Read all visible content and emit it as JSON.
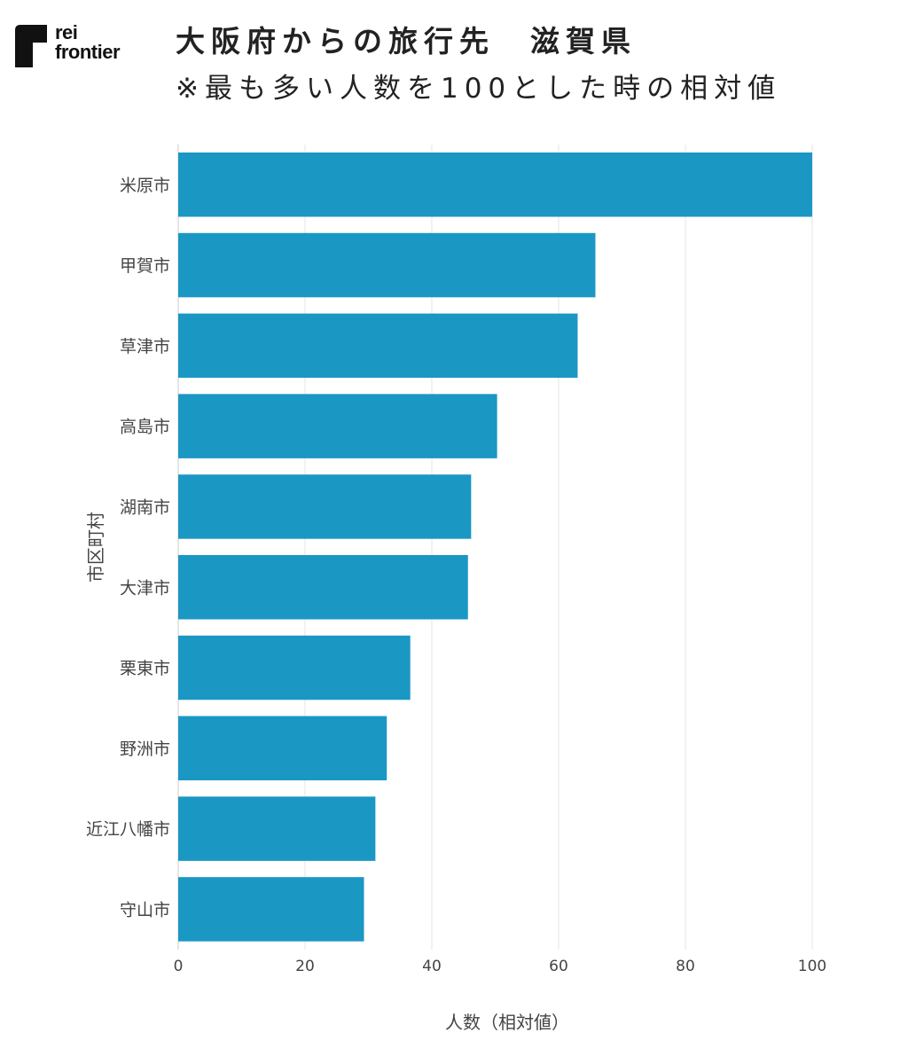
{
  "brand": {
    "logo_line1": "rei",
    "logo_line2": "frontier"
  },
  "header": {
    "title": "大阪府からの旅行先　滋賀県",
    "subtitle": "※最も多い人数を100とした時の相対値"
  },
  "chart_data": {
    "type": "bar",
    "orientation": "horizontal",
    "categories": [
      "米原市",
      "甲賀市",
      "草津市",
      "高島市",
      "湖南市",
      "大津市",
      "栗東市",
      "野洲市",
      "近江八幡市",
      "守山市"
    ],
    "values": [
      100,
      65.8,
      63,
      50.3,
      46.2,
      45.7,
      36.6,
      32.9,
      31.1,
      29.3
    ],
    "xlabel": "人数（相対値）",
    "ylabel": "市区町村",
    "xlim": [
      0,
      100
    ],
    "xticks": [
      0,
      20,
      40,
      60,
      80,
      100
    ],
    "grid": "vertical",
    "bar_color": "#1b97c4"
  }
}
